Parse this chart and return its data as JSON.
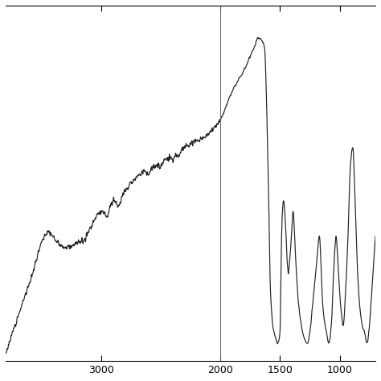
{
  "title": "",
  "xlabel": "",
  "ylabel": "",
  "xlim": [
    3800,
    700
  ],
  "ylim": [
    0,
    1
  ],
  "xticks": [
    3000,
    2000,
    1500,
    1000
  ],
  "xticklabels": [
    "3000",
    "2000",
    "1500",
    "1000"
  ],
  "background_color": "#ffffff",
  "line_color": "#222222",
  "vline_x": 2000,
  "vline_color": "#666666",
  "keypoints": [
    [
      3800,
      0.02
    ],
    [
      3600,
      0.22
    ],
    [
      3450,
      0.36
    ],
    [
      3300,
      0.32
    ],
    [
      3150,
      0.34
    ],
    [
      3050,
      0.4
    ],
    [
      2950,
      0.44
    ],
    [
      2850,
      0.46
    ],
    [
      2700,
      0.52
    ],
    [
      2500,
      0.56
    ],
    [
      2300,
      0.6
    ],
    [
      2100,
      0.64
    ],
    [
      2000,
      0.68
    ],
    [
      1900,
      0.76
    ],
    [
      1800,
      0.82
    ],
    [
      1720,
      0.88
    ],
    [
      1680,
      0.91
    ],
    [
      1650,
      0.9
    ],
    [
      1630,
      0.88
    ],
    [
      1600,
      0.55
    ],
    [
      1580,
      0.2
    ],
    [
      1560,
      0.1
    ],
    [
      1540,
      0.07
    ],
    [
      1520,
      0.05
    ],
    [
      1500,
      0.08
    ],
    [
      1490,
      0.3
    ],
    [
      1480,
      0.42
    ],
    [
      1470,
      0.45
    ],
    [
      1460,
      0.42
    ],
    [
      1450,
      0.36
    ],
    [
      1440,
      0.28
    ],
    [
      1430,
      0.25
    ],
    [
      1420,
      0.28
    ],
    [
      1410,
      0.32
    ],
    [
      1400,
      0.38
    ],
    [
      1390,
      0.42
    ],
    [
      1370,
      0.3
    ],
    [
      1350,
      0.18
    ],
    [
      1330,
      0.12
    ],
    [
      1310,
      0.08
    ],
    [
      1290,
      0.06
    ],
    [
      1270,
      0.05
    ],
    [
      1250,
      0.08
    ],
    [
      1230,
      0.15
    ],
    [
      1200,
      0.25
    ],
    [
      1170,
      0.35
    ],
    [
      1140,
      0.15
    ],
    [
      1110,
      0.08
    ],
    [
      1090,
      0.05
    ],
    [
      1070,
      0.1
    ],
    [
      1050,
      0.25
    ],
    [
      1030,
      0.35
    ],
    [
      1010,
      0.25
    ],
    [
      990,
      0.15
    ],
    [
      970,
      0.1
    ],
    [
      950,
      0.2
    ],
    [
      930,
      0.35
    ],
    [
      910,
      0.55
    ],
    [
      890,
      0.6
    ],
    [
      870,
      0.45
    ],
    [
      850,
      0.25
    ],
    [
      830,
      0.15
    ],
    [
      810,
      0.1
    ],
    [
      790,
      0.08
    ],
    [
      770,
      0.05
    ],
    [
      750,
      0.1
    ],
    [
      730,
      0.2
    ],
    [
      710,
      0.3
    ],
    [
      700,
      0.35
    ]
  ]
}
